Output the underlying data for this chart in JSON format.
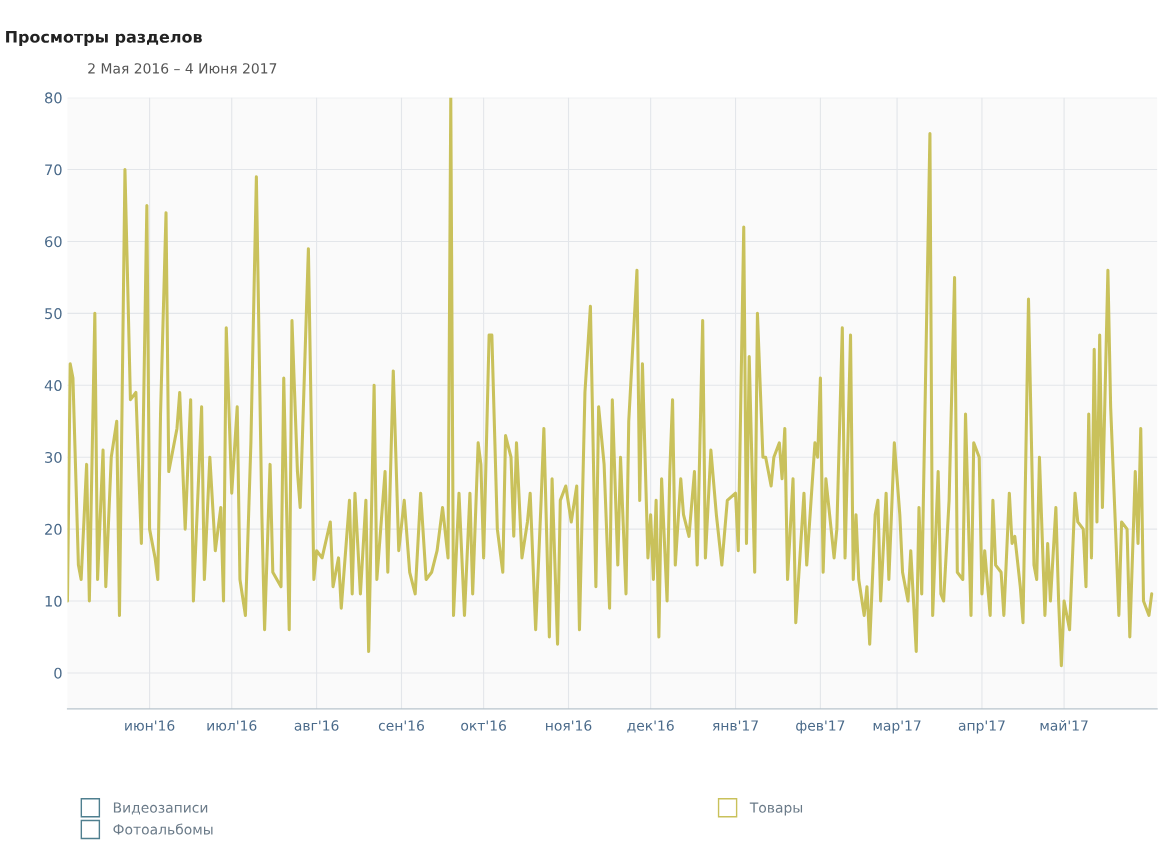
{
  "chart_data": {
    "type": "line",
    "title": "Просмотры разделов",
    "subtitle": "2 Мая 2016 – 4 Июня 2017",
    "xlim": [
      "2016-05-02",
      "2017-06-04"
    ],
    "ylim": [
      -5,
      80
    ],
    "yticks": [
      0,
      10,
      20,
      30,
      40,
      50,
      60,
      70,
      80
    ],
    "xticks": [
      {
        "value": "2016-06-01",
        "label": "июн'16"
      },
      {
        "value": "2016-07-01",
        "label": "июл'16"
      },
      {
        "value": "2016-08-01",
        "label": "авг'16"
      },
      {
        "value": "2016-09-01",
        "label": "сен'16"
      },
      {
        "value": "2016-10-01",
        "label": "окт'16"
      },
      {
        "value": "2016-11-01",
        "label": "ноя'16"
      },
      {
        "value": "2016-12-01",
        "label": "дек'16"
      },
      {
        "value": "2017-01-01",
        "label": "янв'17"
      },
      {
        "value": "2017-02-01",
        "label": "фев'17"
      },
      {
        "value": "2017-03-01",
        "label": "мар'17"
      },
      {
        "value": "2017-04-01",
        "label": "апр'17"
      },
      {
        "value": "2017-05-01",
        "label": "май'17"
      }
    ],
    "grid": true,
    "legend": "bottom",
    "marker": "none",
    "line_style": "solid",
    "series": [
      {
        "name": "Видеозаписи",
        "color": "#4f7f8f"
      },
      {
        "name": "Фотоальбомы",
        "color": "#4f7f8f"
      },
      {
        "name": "Товары",
        "color": "#c9c15b",
        "x": [
          "2016-05-02",
          "2016-05-03",
          "2016-05-04",
          "2016-05-06",
          "2016-05-07",
          "2016-05-09",
          "2016-05-10",
          "2016-05-12",
          "2016-05-13",
          "2016-05-15",
          "2016-05-16",
          "2016-05-18",
          "2016-05-20",
          "2016-05-21",
          "2016-05-23",
          "2016-05-25",
          "2016-05-27",
          "2016-05-29",
          "2016-05-31",
          "2016-06-01",
          "2016-06-03",
          "2016-06-04",
          "2016-06-05",
          "2016-06-07",
          "2016-06-08",
          "2016-06-11",
          "2016-06-12",
          "2016-06-14",
          "2016-06-16",
          "2016-06-17",
          "2016-06-20",
          "2016-06-21",
          "2016-06-23",
          "2016-06-25",
          "2016-06-27",
          "2016-06-28",
          "2016-06-29",
          "2016-07-01",
          "2016-07-03",
          "2016-07-04",
          "2016-07-06",
          "2016-07-08",
          "2016-07-10",
          "2016-07-12",
          "2016-07-13",
          "2016-07-15",
          "2016-07-16",
          "2016-07-19",
          "2016-07-20",
          "2016-07-22",
          "2016-07-23",
          "2016-07-25",
          "2016-07-26",
          "2016-07-29",
          "2016-07-31",
          "2016-08-01",
          "2016-08-03",
          "2016-08-06",
          "2016-08-07",
          "2016-08-09",
          "2016-08-10",
          "2016-08-13",
          "2016-08-14",
          "2016-08-15",
          "2016-08-17",
          "2016-08-19",
          "2016-08-20",
          "2016-08-22",
          "2016-08-23",
          "2016-08-26",
          "2016-08-27",
          "2016-08-29",
          "2016-08-31",
          "2016-09-02",
          "2016-09-04",
          "2016-09-06",
          "2016-09-08",
          "2016-09-10",
          "2016-09-12",
          "2016-09-14",
          "2016-09-16",
          "2016-09-18",
          "2016-09-19",
          "2016-09-20",
          "2016-09-22",
          "2016-09-24",
          "2016-09-26",
          "2016-09-27",
          "2016-09-29",
          "2016-09-30",
          "2016-10-01",
          "2016-10-03",
          "2016-10-04",
          "2016-10-06",
          "2016-10-08",
          "2016-10-09",
          "2016-10-11",
          "2016-10-12",
          "2016-10-13",
          "2016-10-15",
          "2016-10-17",
          "2016-10-18",
          "2016-10-20",
          "2016-10-22",
          "2016-10-23",
          "2016-10-25",
          "2016-10-26",
          "2016-10-28",
          "2016-10-29",
          "2016-10-31",
          "2016-11-02",
          "2016-11-04",
          "2016-11-05",
          "2016-11-07",
          "2016-11-09",
          "2016-11-11",
          "2016-11-12",
          "2016-11-14",
          "2016-11-16",
          "2016-11-17",
          "2016-11-19",
          "2016-11-20",
          "2016-11-22",
          "2016-11-23",
          "2016-11-26",
          "2016-11-27",
          "2016-11-28",
          "2016-11-30",
          "2016-12-01",
          "2016-12-02",
          "2016-12-03",
          "2016-12-04",
          "2016-12-05",
          "2016-12-07",
          "2016-12-08",
          "2016-12-09",
          "2016-12-10",
          "2016-12-12",
          "2016-12-13",
          "2016-12-15",
          "2016-12-17",
          "2016-12-18",
          "2016-12-20",
          "2016-12-21",
          "2016-12-23",
          "2016-12-25",
          "2016-12-27",
          "2016-12-29",
          "2017-01-01",
          "2017-01-02",
          "2017-01-04",
          "2017-01-05",
          "2017-01-06",
          "2017-01-08",
          "2017-01-09",
          "2017-01-11",
          "2017-01-12",
          "2017-01-14",
          "2017-01-15",
          "2017-01-17",
          "2017-01-18",
          "2017-01-19",
          "2017-01-20",
          "2017-01-22",
          "2017-01-23",
          "2017-01-26",
          "2017-01-27",
          "2017-01-30",
          "2017-01-31",
          "2017-02-01",
          "2017-02-02",
          "2017-02-03",
          "2017-02-06",
          "2017-02-07",
          "2017-02-09",
          "2017-02-10",
          "2017-02-12",
          "2017-02-13",
          "2017-02-14",
          "2017-02-15",
          "2017-02-17",
          "2017-02-18",
          "2017-02-19",
          "2017-02-21",
          "2017-02-22",
          "2017-02-23",
          "2017-02-25",
          "2017-02-26",
          "2017-02-28",
          "2017-03-02",
          "2017-03-03",
          "2017-03-05",
          "2017-03-06",
          "2017-03-08",
          "2017-03-09",
          "2017-03-10",
          "2017-03-13",
          "2017-03-14",
          "2017-03-16",
          "2017-03-17",
          "2017-03-18",
          "2017-03-20",
          "2017-03-22",
          "2017-03-23",
          "2017-03-25",
          "2017-03-26",
          "2017-03-28",
          "2017-03-29",
          "2017-03-31",
          "2017-04-01",
          "2017-04-02",
          "2017-04-04",
          "2017-04-05",
          "2017-04-06",
          "2017-04-08",
          "2017-04-09",
          "2017-04-11",
          "2017-04-12",
          "2017-04-13",
          "2017-04-15",
          "2017-04-16",
          "2017-04-18",
          "2017-04-20",
          "2017-04-21",
          "2017-04-22",
          "2017-04-24",
          "2017-04-25",
          "2017-04-26",
          "2017-04-28",
          "2017-04-29",
          "2017-04-30",
          "2017-05-01",
          "2017-05-03",
          "2017-05-05",
          "2017-05-06",
          "2017-05-08",
          "2017-05-09",
          "2017-05-10",
          "2017-05-11",
          "2017-05-12",
          "2017-05-13",
          "2017-05-14",
          "2017-05-15",
          "2017-05-17",
          "2017-05-18",
          "2017-05-20",
          "2017-05-21",
          "2017-05-22",
          "2017-05-24",
          "2017-05-25",
          "2017-05-27",
          "2017-05-28",
          "2017-05-29",
          "2017-05-30",
          "2017-06-01",
          "2017-06-02"
        ],
        "values": [
          10,
          43,
          41,
          15,
          13,
          29,
          10,
          50,
          13,
          31,
          12,
          30,
          35,
          8,
          70,
          38,
          39,
          18,
          65,
          20,
          16,
          13,
          36,
          64,
          28,
          34,
          39,
          20,
          38,
          10,
          37,
          13,
          30,
          17,
          23,
          10,
          48,
          25,
          37,
          13,
          8,
          32,
          69,
          22,
          6,
          29,
          14,
          12,
          41,
          6,
          49,
          28,
          23,
          59,
          13,
          17,
          16,
          21,
          12,
          16,
          9,
          24,
          11,
          25,
          11,
          24,
          3,
          40,
          13,
          28,
          14,
          42,
          17,
          24,
          14,
          11,
          25,
          13,
          14,
          17,
          23,
          16,
          80,
          8,
          25,
          8,
          25,
          11,
          32,
          29,
          16,
          47,
          47,
          20,
          14,
          33,
          30,
          19,
          32,
          16,
          21,
          25,
          6,
          24,
          34,
          5,
          27,
          4,
          24,
          26,
          21,
          26,
          6,
          39,
          51,
          12,
          37,
          29,
          9,
          38,
          15,
          30,
          11,
          35,
          56,
          24,
          43,
          16,
          22,
          13,
          24,
          5,
          27,
          10,
          28,
          38,
          15,
          27,
          22,
          19,
          28,
          15,
          49,
          16,
          31,
          22,
          15,
          24,
          25,
          17,
          62,
          18,
          44,
          14,
          50,
          30,
          30,
          26,
          30,
          32,
          27,
          34,
          13,
          27,
          7,
          25,
          15,
          32,
          30,
          41,
          14,
          27,
          16,
          20,
          48,
          16,
          47,
          13,
          22,
          13,
          8,
          12,
          4,
          22,
          24,
          10,
          25,
          13,
          32,
          22,
          14,
          10,
          17,
          3,
          23,
          11,
          75,
          8,
          28,
          11,
          10,
          24,
          55,
          14,
          13,
          36,
          8,
          32,
          30,
          11,
          17,
          8,
          24,
          15,
          14,
          8,
          25,
          18,
          19,
          12,
          7,
          52,
          15,
          13,
          30,
          8,
          18,
          10,
          23,
          10,
          1,
          10,
          6,
          25,
          21,
          20,
          12,
          36,
          16,
          45,
          21,
          47,
          23,
          56,
          37,
          18,
          8,
          21,
          20,
          5,
          28,
          18,
          34,
          10,
          8,
          11
        ]
      }
    ]
  }
}
